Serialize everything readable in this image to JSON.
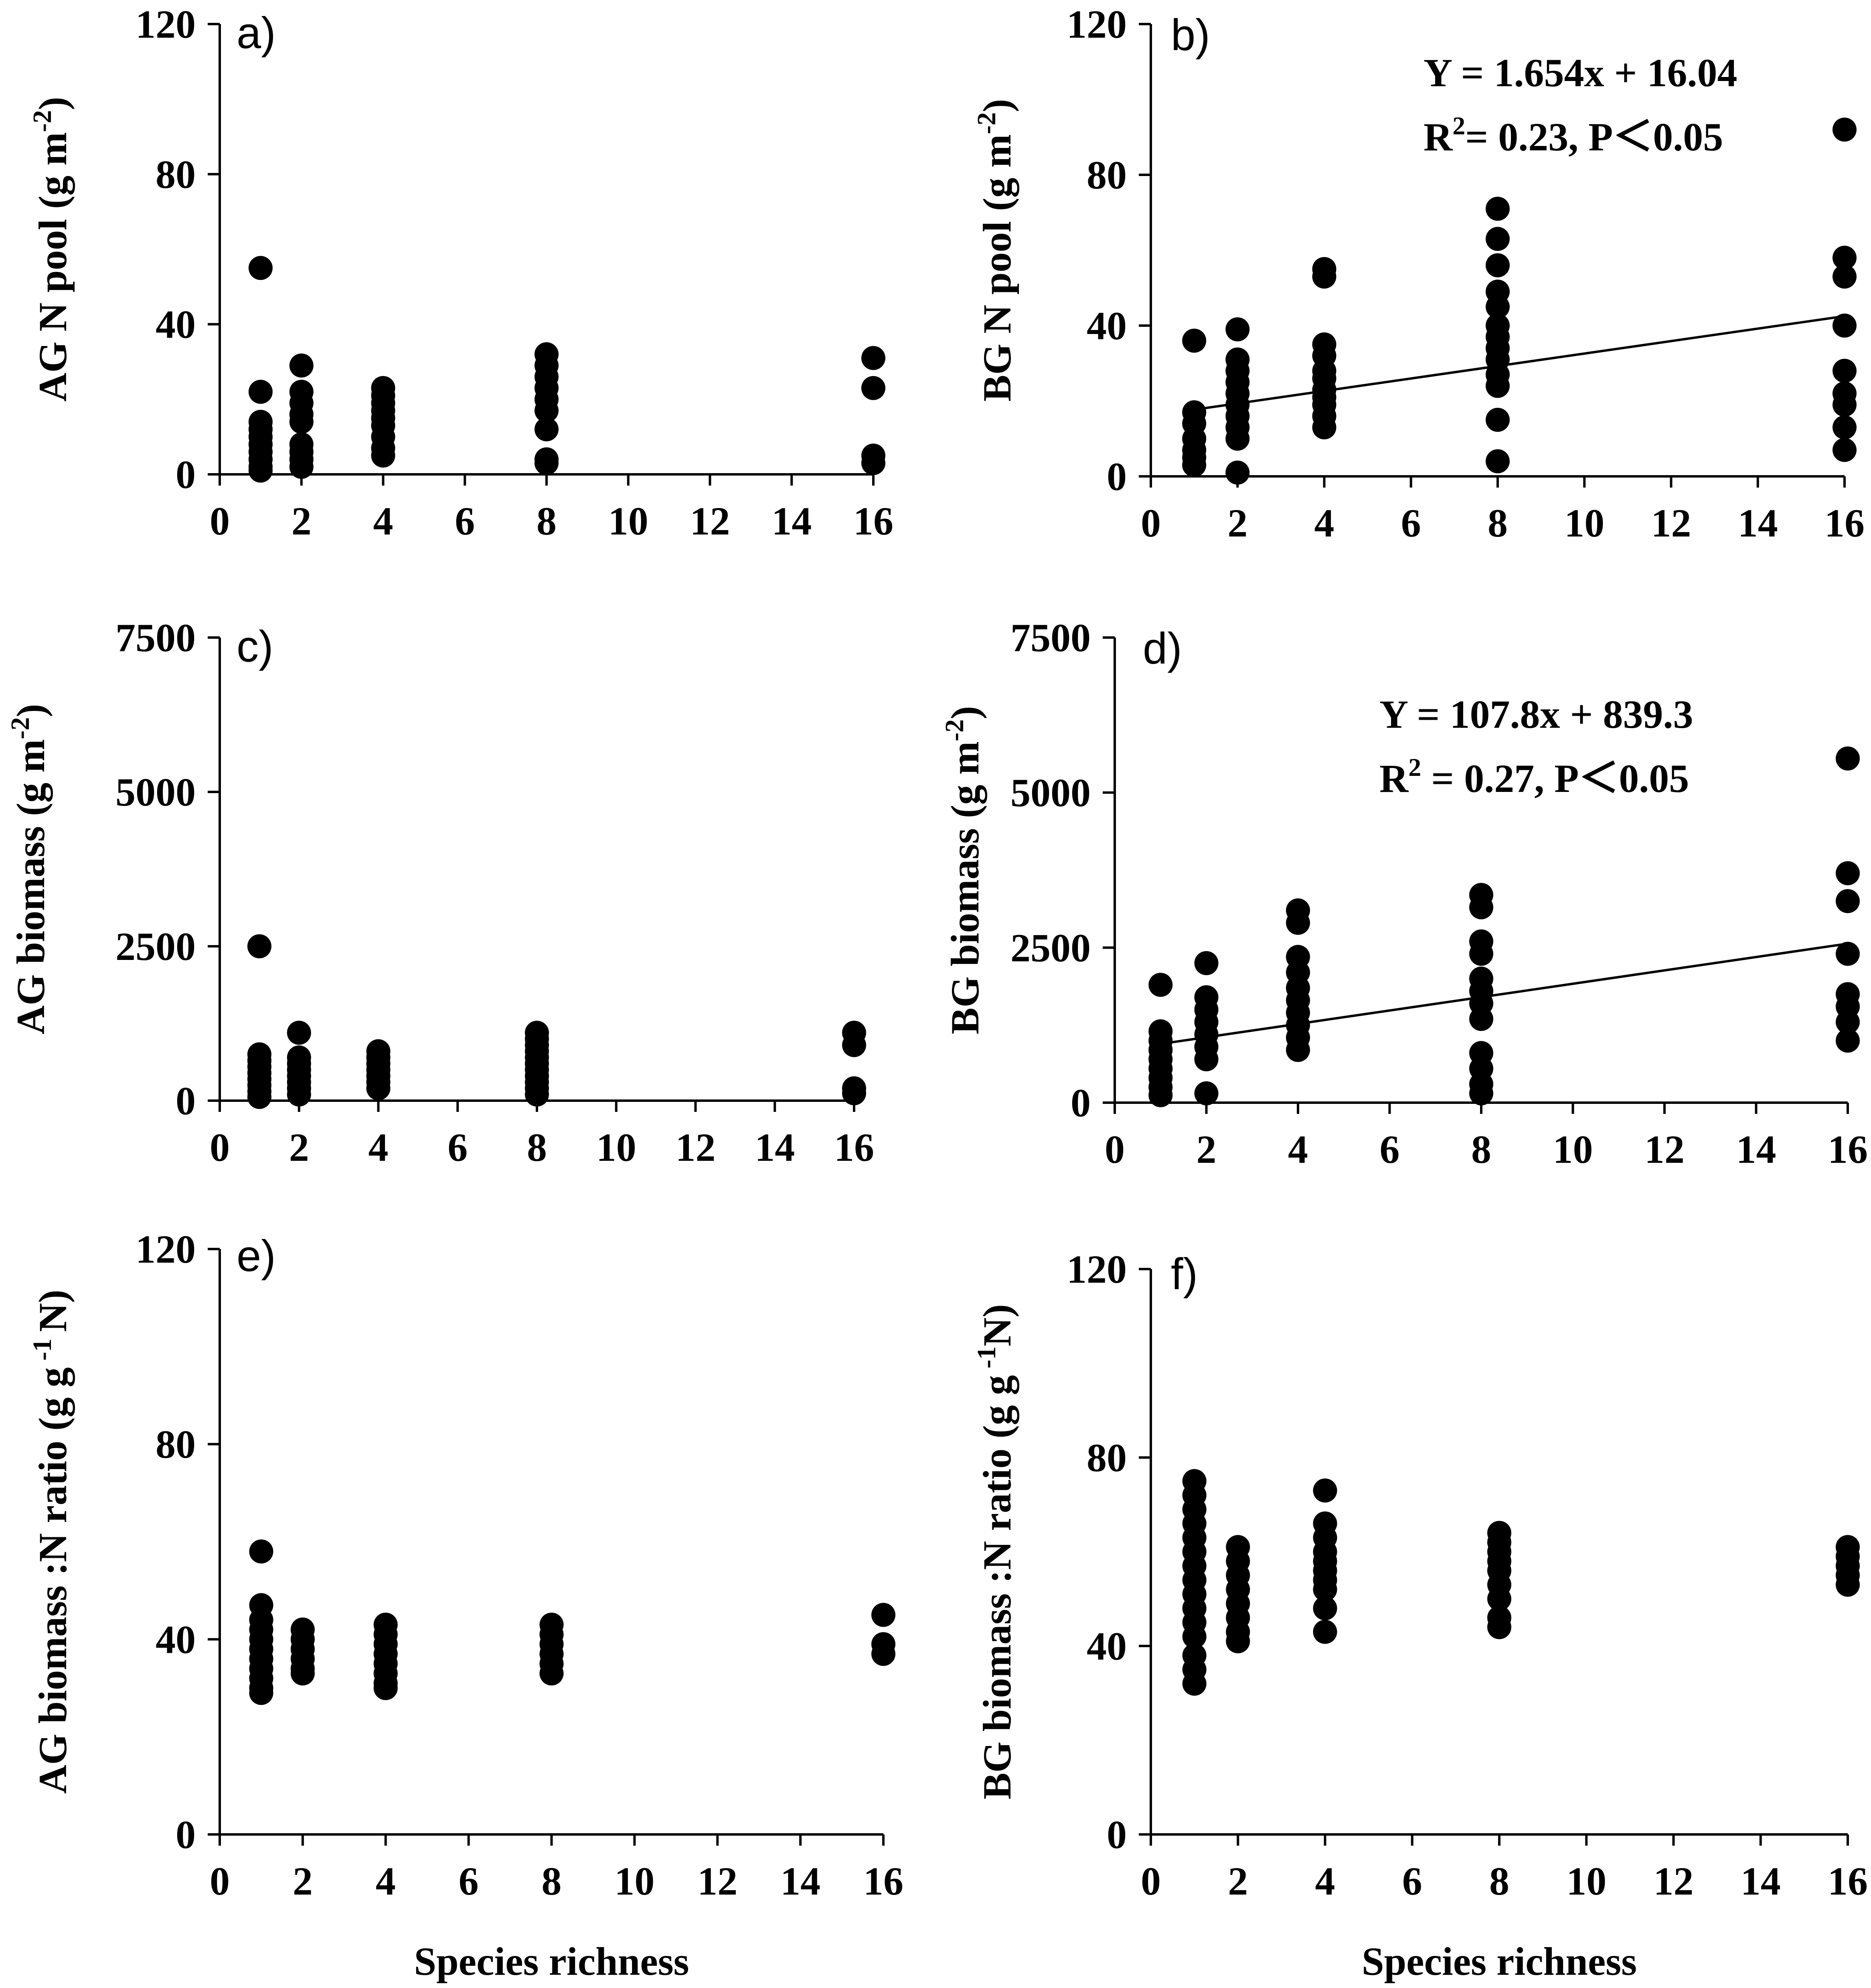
{
  "chart_data": [
    {
      "type": "scatter",
      "panel_label": "a)",
      "ylabel": "AG  N pool (g m",
      "ylabel_sup": "-2",
      "ylabel_end": ")",
      "xlabel": "",
      "xlim": [
        0,
        16
      ],
      "ylim": [
        0,
        120
      ],
      "xticks": [
        "0",
        "2",
        "4",
        "6",
        "8",
        "10",
        "12",
        "14",
        "16"
      ],
      "yticks": [
        "0",
        "40",
        "80",
        "120"
      ],
      "points": [
        [
          1,
          55
        ],
        [
          1,
          22
        ],
        [
          1,
          14
        ],
        [
          1,
          12
        ],
        [
          1,
          10
        ],
        [
          1,
          8
        ],
        [
          1,
          6
        ],
        [
          1,
          4
        ],
        [
          1,
          2
        ],
        [
          1,
          1
        ],
        [
          2,
          29
        ],
        [
          2,
          22
        ],
        [
          2,
          19
        ],
        [
          2,
          16
        ],
        [
          2,
          14
        ],
        [
          2,
          8
        ],
        [
          2,
          6
        ],
        [
          2,
          4
        ],
        [
          2,
          2
        ],
        [
          4,
          23
        ],
        [
          4,
          21
        ],
        [
          4,
          19
        ],
        [
          4,
          17
        ],
        [
          4,
          15
        ],
        [
          4,
          13
        ],
        [
          4,
          10
        ],
        [
          4,
          7
        ],
        [
          4,
          5
        ],
        [
          8,
          32
        ],
        [
          8,
          29
        ],
        [
          8,
          26
        ],
        [
          8,
          23
        ],
        [
          8,
          20
        ],
        [
          8,
          17
        ],
        [
          8,
          12
        ],
        [
          8,
          4
        ],
        [
          8,
          3
        ],
        [
          16,
          31
        ],
        [
          16,
          23
        ],
        [
          16,
          5
        ],
        [
          16,
          3
        ]
      ],
      "regression": null
    },
    {
      "type": "scatter",
      "panel_label": "b)",
      "ylabel": "BG  N pool (g m",
      "ylabel_sup": "-2",
      "ylabel_end": ")",
      "xlabel": "",
      "xlim": [
        0,
        16
      ],
      "ylim": [
        0,
        120
      ],
      "xticks": [
        "0",
        "2",
        "4",
        "6",
        "8",
        "10",
        "12",
        "14",
        "16"
      ],
      "yticks": [
        "0",
        "40",
        "80",
        "120"
      ],
      "points": [
        [
          1,
          36
        ],
        [
          1,
          17
        ],
        [
          1,
          14
        ],
        [
          1,
          10
        ],
        [
          1,
          7
        ],
        [
          1,
          5
        ],
        [
          1,
          3
        ],
        [
          2,
          39
        ],
        [
          2,
          31
        ],
        [
          2,
          28
        ],
        [
          2,
          25
        ],
        [
          2,
          22
        ],
        [
          2,
          19
        ],
        [
          2,
          16
        ],
        [
          2,
          13
        ],
        [
          2,
          10
        ],
        [
          2,
          1
        ],
        [
          4,
          55
        ],
        [
          4,
          53
        ],
        [
          4,
          35
        ],
        [
          4,
          32
        ],
        [
          4,
          28
        ],
        [
          4,
          26
        ],
        [
          4,
          23
        ],
        [
          4,
          21
        ],
        [
          4,
          19
        ],
        [
          4,
          16
        ],
        [
          4,
          13
        ],
        [
          8,
          71
        ],
        [
          8,
          63
        ],
        [
          8,
          56
        ],
        [
          8,
          49
        ],
        [
          8,
          45
        ],
        [
          8,
          40
        ],
        [
          8,
          37
        ],
        [
          8,
          34
        ],
        [
          8,
          31
        ],
        [
          8,
          27
        ],
        [
          8,
          24
        ],
        [
          8,
          15
        ],
        [
          8,
          4
        ],
        [
          16,
          92
        ],
        [
          16,
          58
        ],
        [
          16,
          53
        ],
        [
          16,
          40
        ],
        [
          16,
          28
        ],
        [
          16,
          22
        ],
        [
          16,
          19
        ],
        [
          16,
          13
        ],
        [
          16,
          7
        ]
      ],
      "regression": {
        "slope": 1.654,
        "intercept": 16.04,
        "x_range": [
          1,
          16
        ]
      },
      "equation_line1": "Y = 1.654x + 16.04",
      "equation_r2_pre": "R",
      "equation_r2_sup": "2",
      "equation_r2_post": "= 0.23, P＜0.05"
    },
    {
      "type": "scatter",
      "panel_label": "c)",
      "ylabel": "AG biomass  (g m",
      "ylabel_sup": "-2",
      "ylabel_end": ")",
      "xlabel": "",
      "xlim": [
        0,
        16
      ],
      "ylim": [
        0,
        7500
      ],
      "xticks": [
        "0",
        "2",
        "4",
        "6",
        "8",
        "10",
        "12",
        "14",
        "16"
      ],
      "yticks": [
        "0",
        "2500",
        "5000",
        "7500"
      ],
      "points": [
        [
          1,
          2500
        ],
        [
          1,
          750
        ],
        [
          1,
          650
        ],
        [
          1,
          550
        ],
        [
          1,
          450
        ],
        [
          1,
          350
        ],
        [
          1,
          250
        ],
        [
          1,
          150
        ],
        [
          1,
          60
        ],
        [
          2,
          1100
        ],
        [
          2,
          700
        ],
        [
          2,
          600
        ],
        [
          2,
          500
        ],
        [
          2,
          400
        ],
        [
          2,
          300
        ],
        [
          2,
          200
        ],
        [
          2,
          100
        ],
        [
          4,
          800
        ],
        [
          4,
          700
        ],
        [
          4,
          600
        ],
        [
          4,
          500
        ],
        [
          4,
          400
        ],
        [
          4,
          300
        ],
        [
          4,
          200
        ],
        [
          8,
          1100
        ],
        [
          8,
          1000
        ],
        [
          8,
          900
        ],
        [
          8,
          800
        ],
        [
          8,
          700
        ],
        [
          8,
          600
        ],
        [
          8,
          500
        ],
        [
          8,
          400
        ],
        [
          8,
          300
        ],
        [
          8,
          200
        ],
        [
          8,
          100
        ],
        [
          16,
          1100
        ],
        [
          16,
          900
        ],
        [
          16,
          200
        ],
        [
          16,
          120
        ]
      ],
      "regression": null
    },
    {
      "type": "scatter",
      "panel_label": "d)",
      "ylabel": "BG biomass  (g m",
      "ylabel_sup": "-2",
      "ylabel_end": ")",
      "xlabel": "",
      "xlim": [
        0,
        16
      ],
      "ylim": [
        0,
        7500
      ],
      "xticks": [
        "0",
        "2",
        "4",
        "6",
        "8",
        "10",
        "12",
        "14",
        "16"
      ],
      "yticks": [
        "0",
        "2500",
        "5000",
        "7500"
      ],
      "points": [
        [
          1,
          1900
        ],
        [
          1,
          1150
        ],
        [
          1,
          1000
        ],
        [
          1,
          850
        ],
        [
          1,
          700
        ],
        [
          1,
          550
        ],
        [
          1,
          400
        ],
        [
          1,
          250
        ],
        [
          1,
          120
        ],
        [
          2,
          2250
        ],
        [
          2,
          1700
        ],
        [
          2,
          1500
        ],
        [
          2,
          1300
        ],
        [
          2,
          1100
        ],
        [
          2,
          900
        ],
        [
          2,
          700
        ],
        [
          2,
          150
        ],
        [
          4,
          3100
        ],
        [
          4,
          2900
        ],
        [
          4,
          2350
        ],
        [
          4,
          2100
        ],
        [
          4,
          1850
        ],
        [
          4,
          1650
        ],
        [
          4,
          1450
        ],
        [
          4,
          1250
        ],
        [
          4,
          1050
        ],
        [
          4,
          850
        ],
        [
          8,
          3350
        ],
        [
          8,
          3150
        ],
        [
          8,
          2600
        ],
        [
          8,
          2400
        ],
        [
          8,
          2000
        ],
        [
          8,
          1800
        ],
        [
          8,
          1600
        ],
        [
          8,
          1350
        ],
        [
          8,
          800
        ],
        [
          8,
          550
        ],
        [
          8,
          300
        ],
        [
          8,
          150
        ],
        [
          16,
          5550
        ],
        [
          16,
          3700
        ],
        [
          16,
          3250
        ],
        [
          16,
          2400
        ],
        [
          16,
          1750
        ],
        [
          16,
          1550
        ],
        [
          16,
          1300
        ],
        [
          16,
          1000
        ]
      ],
      "regression": {
        "slope": 107.8,
        "intercept": 839.3,
        "x_range": [
          1,
          16
        ]
      },
      "equation_line1": "Y = 107.8x + 839.3",
      "equation_r2_pre": "R",
      "equation_r2_sup": "2",
      "equation_r2_post": " = 0.27, P＜0.05"
    },
    {
      "type": "scatter",
      "panel_label": "e)",
      "ylabel": "AG biomass :N ratio  (g g",
      "ylabel_sup": " -1 ",
      "ylabel_end": "N)",
      "xlabel": "Species richness",
      "xlim": [
        0,
        16
      ],
      "ylim": [
        0,
        120
      ],
      "xticks": [
        "0",
        "2",
        "4",
        "6",
        "8",
        "10",
        "12",
        "14",
        "16"
      ],
      "yticks": [
        "0",
        "40",
        "80",
        "120"
      ],
      "points": [
        [
          1,
          58
        ],
        [
          1,
          47
        ],
        [
          1,
          44
        ],
        [
          1,
          42
        ],
        [
          1,
          40
        ],
        [
          1,
          38
        ],
        [
          1,
          36
        ],
        [
          1,
          34
        ],
        [
          1,
          32
        ],
        [
          1,
          30
        ],
        [
          1,
          29
        ],
        [
          2,
          42
        ],
        [
          2,
          40
        ],
        [
          2,
          38
        ],
        [
          2,
          36
        ],
        [
          2,
          34
        ],
        [
          2,
          33
        ],
        [
          4,
          43
        ],
        [
          4,
          41
        ],
        [
          4,
          39
        ],
        [
          4,
          37
        ],
        [
          4,
          35
        ],
        [
          4,
          33
        ],
        [
          4,
          31
        ],
        [
          4,
          30
        ],
        [
          8,
          43
        ],
        [
          8,
          41
        ],
        [
          8,
          39
        ],
        [
          8,
          37
        ],
        [
          8,
          35
        ],
        [
          8,
          33
        ],
        [
          16,
          45
        ],
        [
          16,
          39
        ],
        [
          16,
          37
        ]
      ],
      "regression": null
    },
    {
      "type": "scatter",
      "panel_label": "f)",
      "ylabel": "BG biomass :N ratio  (g g",
      "ylabel_sup": " -1",
      "ylabel_end": "N)",
      "xlabel": "Species richness",
      "xlim": [
        0,
        16
      ],
      "ylim": [
        0,
        120
      ],
      "xticks": [
        "0",
        "2",
        "4",
        "6",
        "8",
        "10",
        "12",
        "14",
        "16"
      ],
      "yticks": [
        "0",
        "40",
        "80",
        "120"
      ],
      "points": [
        [
          1,
          75
        ],
        [
          1,
          72
        ],
        [
          1,
          69
        ],
        [
          1,
          66
        ],
        [
          1,
          63
        ],
        [
          1,
          60
        ],
        [
          1,
          57
        ],
        [
          1,
          54
        ],
        [
          1,
          51
        ],
        [
          1,
          48
        ],
        [
          1,
          45
        ],
        [
          1,
          42
        ],
        [
          1,
          38
        ],
        [
          1,
          35
        ],
        [
          1,
          32
        ],
        [
          2,
          61
        ],
        [
          2,
          58
        ],
        [
          2,
          55
        ],
        [
          2,
          52
        ],
        [
          2,
          49
        ],
        [
          2,
          46
        ],
        [
          2,
          43
        ],
        [
          2,
          41
        ],
        [
          4,
          73
        ],
        [
          4,
          66
        ],
        [
          4,
          63
        ],
        [
          4,
          60
        ],
        [
          4,
          58
        ],
        [
          4,
          56
        ],
        [
          4,
          54
        ],
        [
          4,
          52
        ],
        [
          4,
          48
        ],
        [
          4,
          43
        ],
        [
          8,
          64
        ],
        [
          8,
          62
        ],
        [
          8,
          60
        ],
        [
          8,
          58
        ],
        [
          8,
          56
        ],
        [
          8,
          53
        ],
        [
          8,
          50
        ],
        [
          8,
          46
        ],
        [
          8,
          44
        ],
        [
          16,
          61
        ],
        [
          16,
          59
        ],
        [
          16,
          57
        ],
        [
          16,
          55
        ],
        [
          16,
          53
        ]
      ],
      "regression": null
    }
  ]
}
